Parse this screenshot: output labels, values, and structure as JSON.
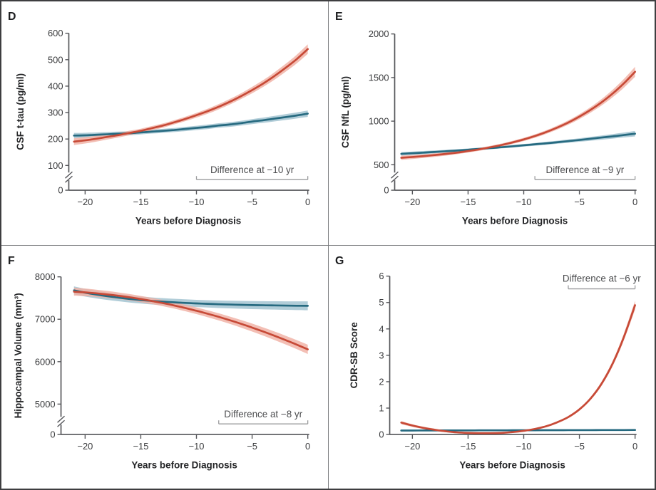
{
  "figure": {
    "type": "multi-panel-line-figure",
    "x_axis_label": "Years before Diagnosis",
    "x_ticks": [
      -20,
      -15,
      -10,
      -5,
      0
    ],
    "x_range": [
      -21,
      0
    ]
  },
  "colors": {
    "red_line": "#c74a37",
    "red_band": "#f0b1a5",
    "blue_line": "#266a80",
    "blue_band": "#aac9d5",
    "axis": "#55565a",
    "tick_label": "#3a3b3d",
    "title_text": "#232426",
    "annotation_text": "#4c4d4f",
    "annotation_line": "#9b9c9e",
    "panel_divider": "#7a7b7e",
    "outer_border": "#3e3e40",
    "background": "#ffffff"
  },
  "chart_data": [
    {
      "id": "D",
      "type": "line",
      "panel_label": "D",
      "ylabel": "CSF t-tau (pg/ml)",
      "xlabel": "Years before Diagnosis",
      "y_ticks": [
        0,
        100,
        200,
        300,
        400,
        500,
        600
      ],
      "y_axis_break": true,
      "x_ticks": [
        -20,
        -15,
        -10,
        -5,
        0
      ],
      "x_start": -21,
      "x_step": 1,
      "annotation": {
        "label": "Difference at −10 yr",
        "from_x": -10,
        "to_x": 0,
        "position": "bottom"
      },
      "series": [
        {
          "name": "red",
          "color_key": "red",
          "y": [
            190,
            195,
            201,
            208,
            215,
            223,
            231,
            241,
            251,
            263,
            276,
            290,
            305,
            322,
            341,
            362,
            385,
            410,
            438,
            469,
            502,
            540
          ],
          "band": [
            13,
            12,
            11,
            10,
            9,
            8.5,
            8,
            8,
            8,
            8,
            8.5,
            9,
            9.5,
            10,
            10.5,
            11,
            12,
            13,
            14,
            15,
            16.5,
            18
          ]
        },
        {
          "name": "blue",
          "color_key": "blue",
          "y": [
            213,
            214,
            216,
            218,
            220,
            222,
            225,
            228,
            231,
            234,
            238,
            242,
            246,
            251,
            255,
            260,
            266,
            271,
            277,
            283,
            289,
            296
          ],
          "band": [
            10,
            9.5,
            9,
            8.5,
            8,
            8,
            7.5,
            7.5,
            7.5,
            7.5,
            8,
            8,
            8.5,
            8.5,
            9,
            9,
            9.5,
            10,
            10.5,
            11,
            11.5,
            12
          ]
        }
      ]
    },
    {
      "id": "E",
      "type": "line",
      "panel_label": "E",
      "ylabel": "CSF NfL (pg/ml)",
      "xlabel": "Years before Diagnosis",
      "y_ticks": [
        0,
        500,
        1000,
        1500,
        2000
      ],
      "y_axis_break": true,
      "x_ticks": [
        -20,
        -15,
        -10,
        -5,
        0
      ],
      "x_start": -21,
      "x_step": 1,
      "annotation": {
        "label": "Difference at −9 yr",
        "from_x": -9,
        "to_x": 0,
        "position": "bottom"
      },
      "series": [
        {
          "name": "red",
          "color_key": "red",
          "y": [
            580,
            589,
            599,
            611,
            624,
            639,
            657,
            677,
            700,
            726,
            756,
            790,
            829,
            874,
            926,
            984,
            1052,
            1129,
            1217,
            1318,
            1434,
            1566
          ],
          "band": [
            25,
            23,
            21,
            20,
            19,
            18,
            17,
            17,
            17,
            17,
            18,
            19,
            20,
            21,
            23,
            25,
            28,
            32,
            37,
            43,
            50,
            58
          ]
        },
        {
          "name": "blue",
          "color_key": "blue",
          "y": [
            625,
            632,
            639,
            647,
            655,
            663,
            672,
            682,
            691,
            701,
            712,
            723,
            734,
            746,
            758,
            771,
            784,
            798,
            812,
            826,
            841,
            856
          ],
          "band": [
            20,
            19,
            18,
            17,
            16,
            15,
            15,
            14,
            14,
            14,
            15,
            15,
            16,
            17,
            18,
            19,
            20,
            22,
            24,
            26,
            28,
            31
          ]
        }
      ]
    },
    {
      "id": "F",
      "type": "line",
      "panel_label": "F",
      "ylabel": "Hippocampal Volume (mm³)",
      "xlabel": "Years before Diagnosis",
      "y_ticks": [
        0,
        5000,
        6000,
        7000,
        8000
      ],
      "y_axis_break": true,
      "x_ticks": [
        -20,
        -15,
        -10,
        -5,
        0
      ],
      "x_start": -21,
      "x_step": 1,
      "annotation": {
        "label": "Difference at −8 yr",
        "from_x": -8,
        "to_x": 0,
        "position": "bottom"
      },
      "series": [
        {
          "name": "red",
          "color_key": "red",
          "y": [
            7650,
            7633,
            7611,
            7584,
            7553,
            7517,
            7476,
            7430,
            7380,
            7325,
            7265,
            7200,
            7130,
            7056,
            6977,
            6893,
            6804,
            6710,
            6612,
            6509,
            6402,
            6290
          ],
          "band": [
            95,
            90,
            86,
            82,
            79,
            76,
            74,
            73,
            73,
            74,
            76,
            78,
            81,
            84,
            87,
            90,
            94,
            97,
            100,
            103,
            106,
            110
          ]
        },
        {
          "name": "blue",
          "color_key": "blue",
          "y": [
            7680,
            7627,
            7581,
            7542,
            7509,
            7479,
            7454,
            7432,
            7414,
            7398,
            7385,
            7373,
            7363,
            7354,
            7347,
            7340,
            7334,
            7330,
            7326,
            7322,
            7319,
            7316
          ],
          "band": [
            95,
            92,
            89,
            87,
            85,
            84,
            83,
            83,
            83,
            84,
            85,
            86,
            87,
            89,
            90,
            92,
            94,
            96,
            98,
            100,
            103,
            105
          ]
        }
      ]
    },
    {
      "id": "G",
      "type": "line",
      "panel_label": "G",
      "ylabel": "CDR-SB Score",
      "xlabel": "Years before Diagnosis",
      "y_ticks": [
        0,
        1,
        2,
        3,
        4,
        5,
        6
      ],
      "y_axis_break": false,
      "x_ticks": [
        -20,
        -15,
        -10,
        -5,
        0
      ],
      "x_start": -21,
      "x_step": 1,
      "annotation": {
        "label": "Difference at −6 yr",
        "from_x": -6,
        "to_x": 0,
        "position": "top"
      },
      "series": [
        {
          "name": "red",
          "color_key": "red",
          "y": [
            0.45,
            0.34,
            0.25,
            0.18,
            0.12,
            0.08,
            0.06,
            0.05,
            0.05,
            0.06,
            0.09,
            0.14,
            0.21,
            0.31,
            0.46,
            0.66,
            0.95,
            1.36,
            1.93,
            2.7,
            3.7,
            4.9
          ],
          "band": [
            0.06,
            0.05,
            0.045,
            0.04,
            0.035,
            0.03,
            0.025,
            0.022,
            0.022,
            0.022,
            0.025,
            0.03,
            0.03,
            0.035,
            0.04,
            0.045,
            0.05,
            0.06,
            0.08,
            0.1,
            0.13,
            0.17
          ]
        },
        {
          "name": "blue",
          "color_key": "blue",
          "y": [
            0.15,
            0.151,
            0.152,
            0.153,
            0.154,
            0.155,
            0.156,
            0.157,
            0.158,
            0.159,
            0.16,
            0.161,
            0.162,
            0.163,
            0.164,
            0.165,
            0.166,
            0.167,
            0.168,
            0.169,
            0.17,
            0.171
          ],
          "band": [
            0.025,
            0.025,
            0.025,
            0.025,
            0.025,
            0.025,
            0.025,
            0.025,
            0.025,
            0.025,
            0.025,
            0.025,
            0.025,
            0.025,
            0.025,
            0.025,
            0.025,
            0.025,
            0.025,
            0.025,
            0.025,
            0.025
          ]
        }
      ]
    }
  ]
}
